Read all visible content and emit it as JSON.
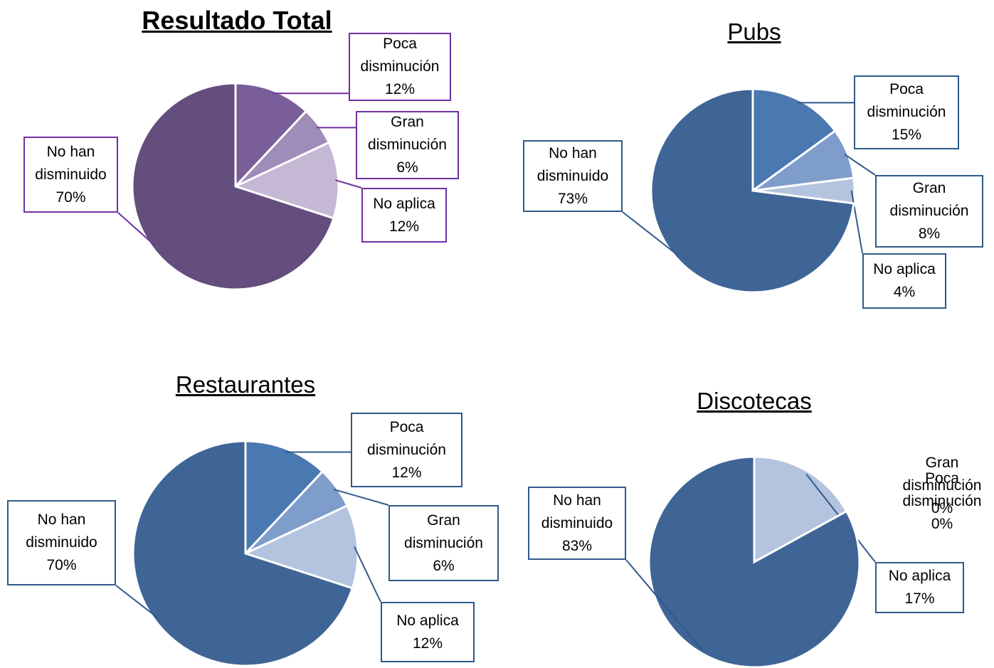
{
  "chart_data": [
    {
      "type": "pie",
      "title": "Resultado Total",
      "categories": [
        "Poca disminución",
        "Gran disminución",
        "No aplica",
        "No han disminuido"
      ],
      "values": [
        12,
        6,
        12,
        70
      ],
      "value_labels": [
        "12%",
        "6%",
        "12%",
        "70%"
      ],
      "colors": [
        "#7a5e9a",
        "#a08cb8",
        "#c4b8d4",
        "#634e7e"
      ]
    },
    {
      "type": "pie",
      "title": "Pubs",
      "categories": [
        "Poca disminución",
        "Gran disminución",
        "No aplica",
        "No han disminuido"
      ],
      "values": [
        15,
        8,
        4,
        73
      ],
      "value_labels": [
        "15%",
        "8%",
        "4%",
        "73%"
      ],
      "colors": [
        "#4a78b0",
        "#7f9dcb",
        "#b4c3de",
        "#3e6595"
      ]
    },
    {
      "type": "pie",
      "title": "Restaurantes",
      "categories": [
        "Poca disminución",
        "Gran disminución",
        "No aplica",
        "No han disminuido"
      ],
      "values": [
        12,
        6,
        12,
        70
      ],
      "value_labels": [
        "12%",
        "6%",
        "12%",
        "70%"
      ],
      "colors": [
        "#4a78b0",
        "#7f9dcb",
        "#b4c3de",
        "#3e6595"
      ]
    },
    {
      "type": "pie",
      "title": "Discotecas",
      "categories": [
        "Poca disminución",
        "Gran disminución",
        "No aplica",
        "No han disminuido"
      ],
      "values": [
        0,
        0,
        17,
        83
      ],
      "value_labels": [
        "0%",
        "0%",
        "17%",
        "83%"
      ],
      "colors": [
        "#4a78b0",
        "#7f9dcb",
        "#b4c3de",
        "#3e6595"
      ]
    }
  ]
}
